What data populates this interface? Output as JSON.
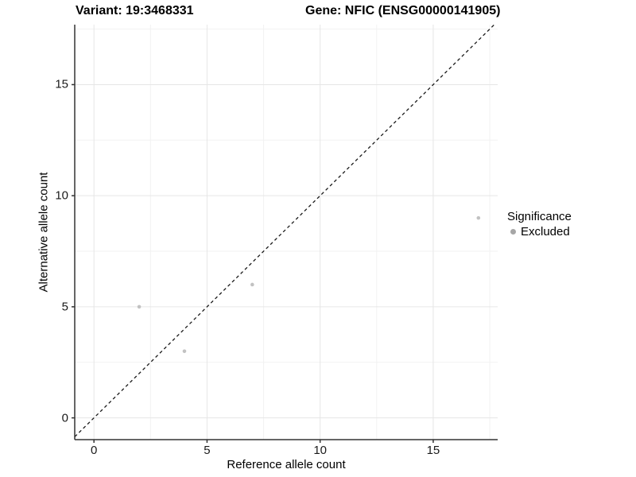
{
  "header": {
    "variant_title": "Variant: 19:3468331",
    "gene_title": "Gene: NFIC (ENSG00000141905)"
  },
  "legend": {
    "title": "Significance",
    "items": [
      {
        "label": "Excluded",
        "color": "#a6a6a6"
      }
    ]
  },
  "chart_data": {
    "type": "scatter",
    "xlabel": "Reference allele count",
    "ylabel": "Alternative allele count",
    "xlim": [
      -0.85,
      17.85
    ],
    "ylim": [
      -0.98,
      17.7
    ],
    "x_ticks": [
      0,
      5,
      10,
      15
    ],
    "y_ticks": [
      0,
      5,
      10,
      15
    ],
    "x_minor_ticks": [
      2.5,
      7.5,
      12.5,
      17.5
    ],
    "y_minor_ticks": [
      2.5,
      7.5,
      12.5,
      17.5
    ],
    "grid": true,
    "legend_position": "right",
    "series": [
      {
        "name": "Excluded",
        "color": "#c2c2c2",
        "points": [
          [
            2,
            5
          ],
          [
            4,
            3
          ],
          [
            7,
            6
          ],
          [
            17,
            9
          ]
        ]
      }
    ],
    "reference_line": {
      "kind": "identity",
      "equation": "y = x",
      "style": "dashed",
      "color": "#1a1a1a"
    }
  },
  "colors": {
    "background": "#ffffff",
    "grid_major": "#e6e6e6",
    "grid_minor": "#f2f2f2",
    "axis": "#333333",
    "tick_text": "#1a1a1a"
  }
}
